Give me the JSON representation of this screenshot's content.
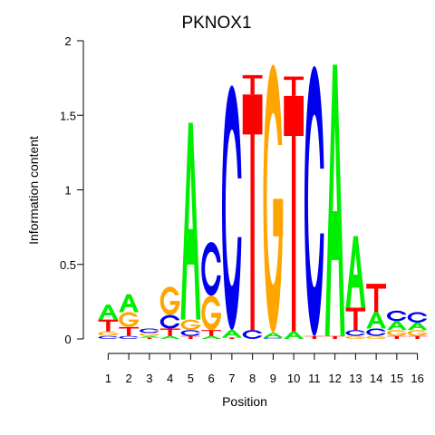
{
  "chart_data": {
    "type": "sequence-logo",
    "title": "PKNOX1",
    "xlabel": "Position",
    "ylabel": "Information content",
    "ylim": [
      0,
      2
    ],
    "yticks": [
      "0",
      "0.5",
      "1",
      "1.5",
      "2"
    ],
    "positions": [
      "1",
      "2",
      "3",
      "4",
      "5",
      "6",
      "7",
      "8",
      "9",
      "10",
      "11",
      "12",
      "13",
      "14",
      "15",
      "16"
    ],
    "colors": {
      "A": "#00ee00",
      "C": "#0000ee",
      "G": "#ffa500",
      "T": "#ff0000"
    },
    "columns": [
      [
        {
          "b": "C",
          "h": 0.02
        },
        {
          "b": "G",
          "h": 0.03
        },
        {
          "b": "T",
          "h": 0.08
        },
        {
          "b": "A",
          "h": 0.1
        }
      ],
      [
        {
          "b": "C",
          "h": 0.02
        },
        {
          "b": "T",
          "h": 0.06
        },
        {
          "b": "G",
          "h": 0.1
        },
        {
          "b": "A",
          "h": 0.12
        }
      ],
      [
        {
          "b": "T",
          "h": 0.01
        },
        {
          "b": "A",
          "h": 0.01
        },
        {
          "b": "G",
          "h": 0.02
        },
        {
          "b": "C",
          "h": 0.03
        }
      ],
      [
        {
          "b": "A",
          "h": 0.02
        },
        {
          "b": "T",
          "h": 0.05
        },
        {
          "b": "C",
          "h": 0.09
        },
        {
          "b": "G",
          "h": 0.19
        }
      ],
      [
        {
          "b": "T",
          "h": 0.02
        },
        {
          "b": "C",
          "h": 0.04
        },
        {
          "b": "G",
          "h": 0.07
        },
        {
          "b": "A",
          "h": 1.32
        }
      ],
      [
        {
          "b": "A",
          "h": 0.02
        },
        {
          "b": "T",
          "h": 0.04
        },
        {
          "b": "G",
          "h": 0.23
        },
        {
          "b": "C",
          "h": 0.36
        }
      ],
      [
        {
          "b": "T",
          "h": 0.01
        },
        {
          "b": "A",
          "h": 0.05
        },
        {
          "b": "C",
          "h": 1.64
        }
      ],
      [
        {
          "b": "C",
          "h": 0.06
        },
        {
          "b": "T",
          "h": 1.58
        },
        {
          "b": "T",
          "h": 0.13
        }
      ],
      [
        {
          "b": "C",
          "h": 0.01
        },
        {
          "b": "A",
          "h": 0.03
        },
        {
          "b": "G",
          "h": 1.8
        }
      ],
      [
        {
          "b": "A",
          "h": 0.05
        },
        {
          "b": "T",
          "h": 1.58
        },
        {
          "b": "T",
          "h": 0.13
        }
      ],
      [
        {
          "b": "T",
          "h": 0.02
        },
        {
          "b": "C",
          "h": 1.81
        }
      ],
      [
        {
          "b": "T",
          "h": 0.02
        },
        {
          "b": "A",
          "h": 1.82
        }
      ],
      [
        {
          "b": "G",
          "h": 0.02
        },
        {
          "b": "C",
          "h": 0.04
        },
        {
          "b": "T",
          "h": 0.15
        },
        {
          "b": "A",
          "h": 0.48
        }
      ],
      [
        {
          "b": "G",
          "h": 0.02
        },
        {
          "b": "C",
          "h": 0.05
        },
        {
          "b": "A",
          "h": 0.11
        },
        {
          "b": "T",
          "h": 0.19
        }
      ],
      [
        {
          "b": "T",
          "h": 0.02
        },
        {
          "b": "G",
          "h": 0.04
        },
        {
          "b": "A",
          "h": 0.06
        },
        {
          "b": "C",
          "h": 0.07
        }
      ],
      [
        {
          "b": "T",
          "h": 0.02
        },
        {
          "b": "G",
          "h": 0.04
        },
        {
          "b": "A",
          "h": 0.05
        },
        {
          "b": "C",
          "h": 0.07
        }
      ]
    ]
  }
}
